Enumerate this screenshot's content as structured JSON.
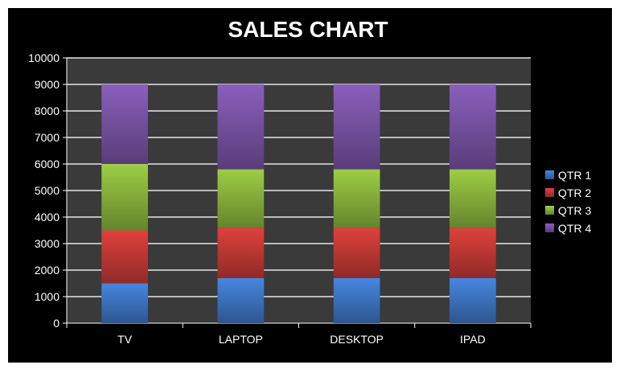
{
  "chart_data": {
    "type": "bar",
    "stacked": true,
    "title": "SALES CHART",
    "categories": [
      "TV",
      "LAPTOP",
      "DESKTOP",
      "IPAD"
    ],
    "series": [
      {
        "name": "QTR 1",
        "color": "#3f78c8",
        "values": [
          1500,
          1700,
          1700,
          1700
        ]
      },
      {
        "name": "QTR 2",
        "color": "#c83a36",
        "values": [
          2000,
          1900,
          1900,
          1900
        ]
      },
      {
        "name": "QTR 3",
        "color": "#8cb83e",
        "values": [
          2500,
          2200,
          2200,
          2200
        ]
      },
      {
        "name": "QTR 4",
        "color": "#7b55a8",
        "values": [
          3000,
          3200,
          3200,
          3200
        ]
      }
    ],
    "ylim": [
      0,
      10000
    ],
    "yticks": [
      0,
      1000,
      2000,
      3000,
      4000,
      5000,
      6000,
      7000,
      8000,
      9000,
      10000
    ],
    "grid": true,
    "legend": "right",
    "plot_background": "#3a3a3a",
    "background": "#000000"
  }
}
